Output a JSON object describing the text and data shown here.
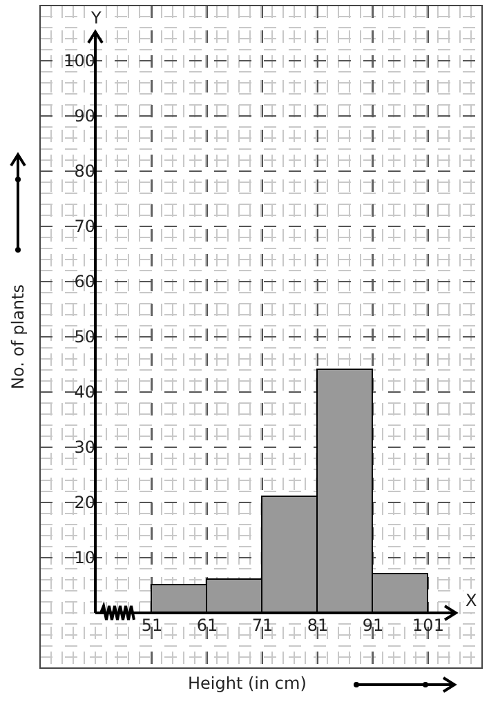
{
  "chart_data": {
    "type": "histogram",
    "xlabel": "Height (in cm)",
    "ylabel": "No. of plants",
    "bins": [
      51,
      61,
      71,
      81,
      91,
      101
    ],
    "values": [
      5,
      6,
      21,
      44,
      7
    ],
    "color": "#999999",
    "xlim": [
      30.75,
      110.75
    ],
    "ylim": [
      -10,
      110
    ],
    "xticks": [
      51,
      61,
      71,
      81,
      91,
      101
    ],
    "yticks": [
      10,
      20,
      30,
      40,
      50,
      60,
      70,
      80,
      90,
      100
    ],
    "annotations": [
      "Y",
      "X"
    ],
    "grid": true
  }
}
